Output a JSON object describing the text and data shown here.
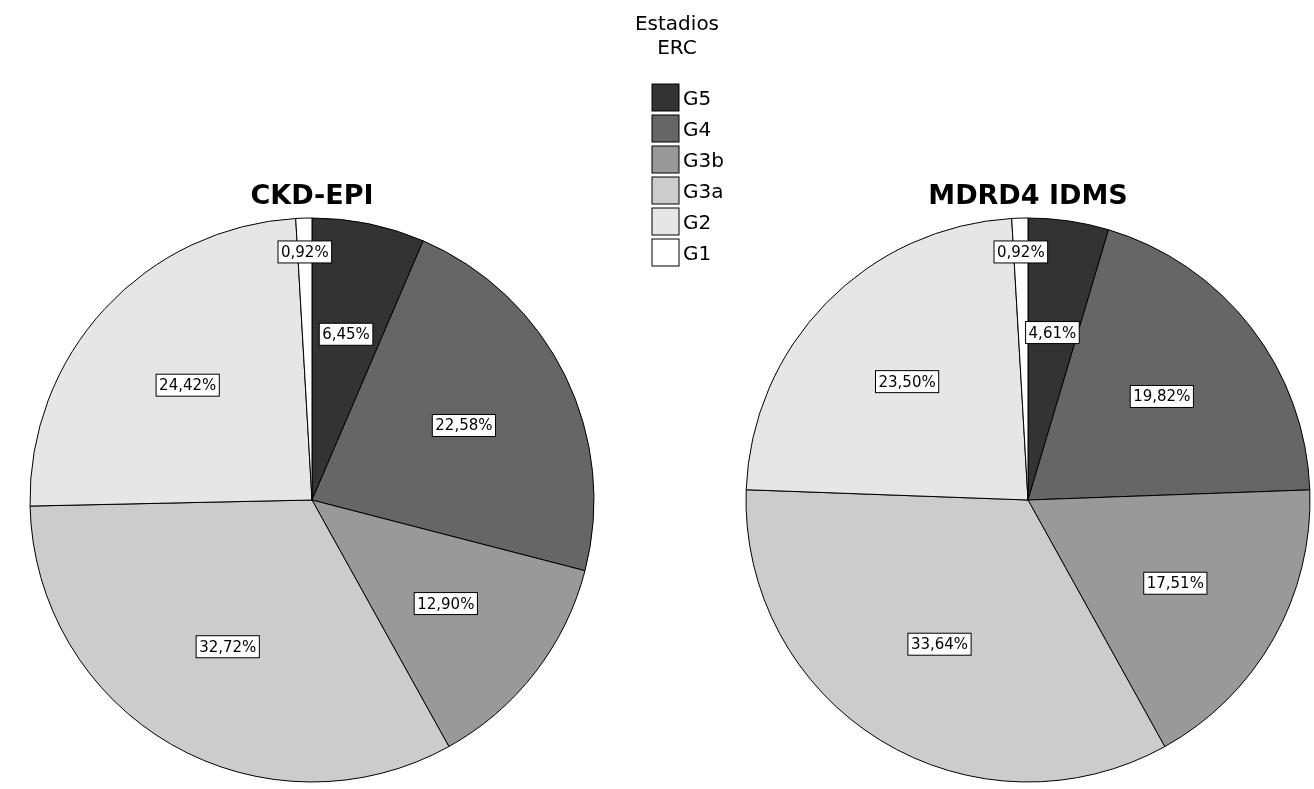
{
  "chart_data": [
    {
      "type": "pie",
      "title": "CKD-EPI",
      "legend_title": "Estadios ERC",
      "legend": "right",
      "categories": [
        "G5",
        "G4",
        "G3b",
        "G3a",
        "G2",
        "G1"
      ],
      "values": [
        6.45,
        22.58,
        12.9,
        32.72,
        24.42,
        0.92
      ],
      "value_labels": [
        "6,45%",
        "22,58%",
        "12,90%",
        "32,72%",
        "24,42%",
        "0,92%"
      ],
      "colors": [
        "#333333",
        "#666666",
        "#999999",
        "#cccccc",
        "#e6e6e6",
        "#ffffff"
      ]
    },
    {
      "type": "pie",
      "title": "MDRD4 IDMS",
      "categories": [
        null,
        null,
        null,
        null,
        null,
        null
      ],
      "values": [
        4.61,
        19.82,
        17.51,
        33.64,
        23.5,
        0.92
      ],
      "value_labels": [
        "4,61%",
        "19,82%",
        "17,51%",
        "33,64%",
        "23,50%",
        "0,92%"
      ],
      "colors": [
        "#333333",
        "#666666",
        "#999999",
        "#cccccc",
        "#e6e6e6",
        "#ffffff"
      ]
    }
  ]
}
